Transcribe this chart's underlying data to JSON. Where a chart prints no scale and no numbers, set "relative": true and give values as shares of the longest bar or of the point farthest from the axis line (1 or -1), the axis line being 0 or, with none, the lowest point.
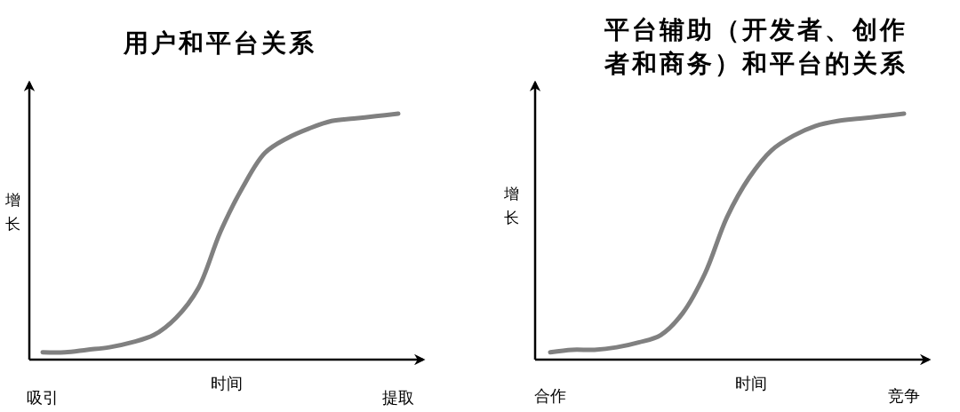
{
  "chart_data": [
    {
      "type": "line",
      "title": "用户和平台关系",
      "xlabel": "时间",
      "ylabel": "增长",
      "relative": true,
      "categories": [
        "吸引",
        null,
        null,
        null,
        null,
        null,
        null,
        null,
        null,
        null,
        null,
        null,
        null,
        null,
        null,
        null,
        "提取"
      ],
      "series": [
        {
          "color": "#808080",
          "values": [
            0.03,
            0.03,
            0.04,
            0.05,
            0.07,
            0.1,
            0.17,
            0.29,
            0.52,
            0.7,
            0.84,
            0.9,
            0.94,
            0.97,
            0.98,
            0.99,
            1
          ]
        }
      ]
    },
    {
      "type": "line",
      "title": "平台辅助（开发者、创作者和商务）和平台的关系",
      "xlabel": "时间",
      "ylabel": "增长",
      "relative": true,
      "categories": [
        "合作",
        null,
        null,
        null,
        null,
        null,
        null,
        null,
        null,
        null,
        null,
        null,
        null,
        null,
        null,
        null,
        "竞争"
      ],
      "series": [
        {
          "color": "#808080",
          "values": [
            0.03,
            0.04,
            0.04,
            0.05,
            0.07,
            0.1,
            0.19,
            0.35,
            0.58,
            0.74,
            0.85,
            0.91,
            0.95,
            0.97,
            0.98,
            0.99,
            1
          ]
        }
      ]
    }
  ]
}
